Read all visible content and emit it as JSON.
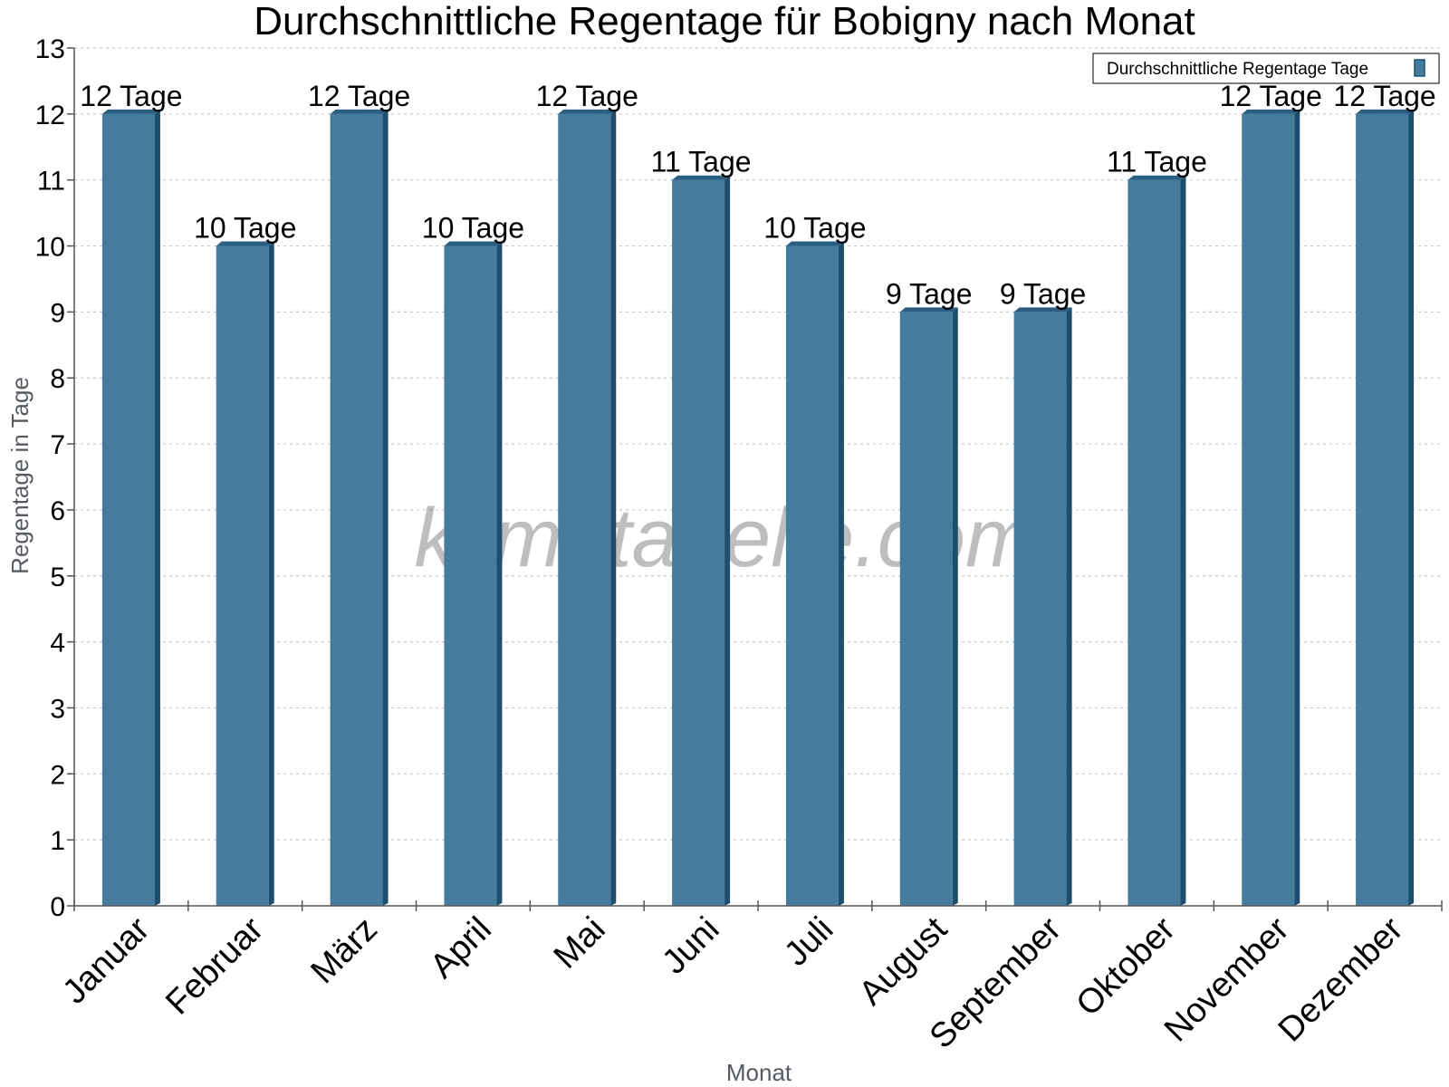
{
  "watermark": "klimatabelle.com",
  "colors": {
    "bar_front": "#457b9d",
    "bar_side": "#1d4e6e",
    "bar_top": "#2a5f82",
    "grid": "#c8c8c8",
    "axis": "#555555"
  },
  "chart_data": {
    "type": "bar",
    "title": "Durchschnittliche Regentage für Bobigny nach Monat",
    "xlabel": "Monat",
    "ylabel": "Regentage in Tage",
    "ylim": [
      0,
      13
    ],
    "yticks": [
      "0",
      "1",
      "2",
      "3",
      "4",
      "5",
      "6",
      "7",
      "8",
      "9",
      "10",
      "11",
      "12",
      "13"
    ],
    "grid": true,
    "legend_position": "top-right",
    "categories": [
      "Januar",
      "Februar",
      "März",
      "April",
      "Mai",
      "Juni",
      "Juli",
      "August",
      "September",
      "Oktober",
      "November",
      "Dezember"
    ],
    "series": [
      {
        "name": "Durchschnittliche Regentage Tage",
        "values": [
          12,
          10,
          12,
          10,
          12,
          11,
          10,
          9,
          9,
          11,
          12,
          12
        ],
        "data_labels": [
          "12 Tage",
          "10 Tage",
          "12 Tage",
          "10 Tage",
          "12 Tage",
          "11 Tage",
          "10 Tage",
          "9 Tage",
          "9 Tage",
          "11 Tage",
          "12 Tage",
          "12 Tage"
        ]
      }
    ]
  }
}
